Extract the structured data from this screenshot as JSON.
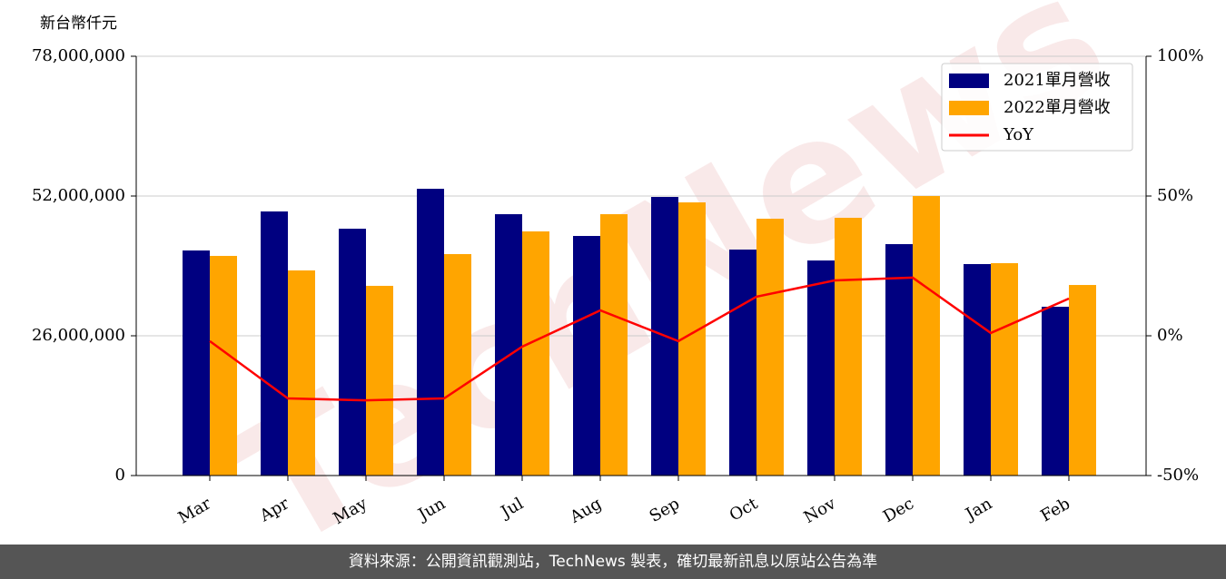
{
  "chart_data": {
    "type": "bar",
    "y_label": "新台幣仟元",
    "watermark": "TechNews",
    "categories": [
      "Mar",
      "Apr",
      "May",
      "Jun",
      "Jul",
      "Aug",
      "Sep",
      "Oct",
      "Nov",
      "Dec",
      "Jan",
      "Feb"
    ],
    "series": [
      {
        "name": "2021單月營收",
        "color": "#000080",
        "values": [
          41870000,
          49130000,
          45920000,
          53350000,
          48620000,
          44570000,
          51830000,
          42040000,
          40010000,
          43050000,
          39340000,
          31400000
        ]
      },
      {
        "name": "2022單月營收",
        "color": "#ffa500",
        "values": [
          40860000,
          38160000,
          35290000,
          41200000,
          45420000,
          48620000,
          50820000,
          47780000,
          47950000,
          52000000,
          39510000,
          35450000
        ]
      },
      {
        "name": "YoY",
        "type": "line",
        "axis": "y2",
        "color": "#ff0000",
        "values": [
          -1.9,
          -22.4,
          -23.1,
          -22.4,
          -3.9,
          9.1,
          -1.9,
          14.0,
          19.8,
          20.8,
          1.0,
          13.3
        ]
      }
    ],
    "ylim": [
      0,
      78000000
    ],
    "yticks": [
      0,
      {
        "value": 26000000,
        "label": "26,000,000"
      },
      {
        "value": 52000000,
        "label": "52,000,000"
      },
      {
        "value": 78000000,
        "label": "78,000,000"
      }
    ],
    "y2lim": [
      -50,
      100
    ],
    "y2ticks": [
      {
        "value": -50,
        "label": "-50%"
      },
      {
        "value": 0,
        "label": "0%"
      },
      {
        "value": 50,
        "label": "50%"
      },
      {
        "value": 100,
        "label": "100%"
      }
    ],
    "grid": true,
    "legend": "upper right",
    "source": "資料來源：公開資訊觀測站，TechNews 製表，確切最新訊息以原站公告為準"
  }
}
